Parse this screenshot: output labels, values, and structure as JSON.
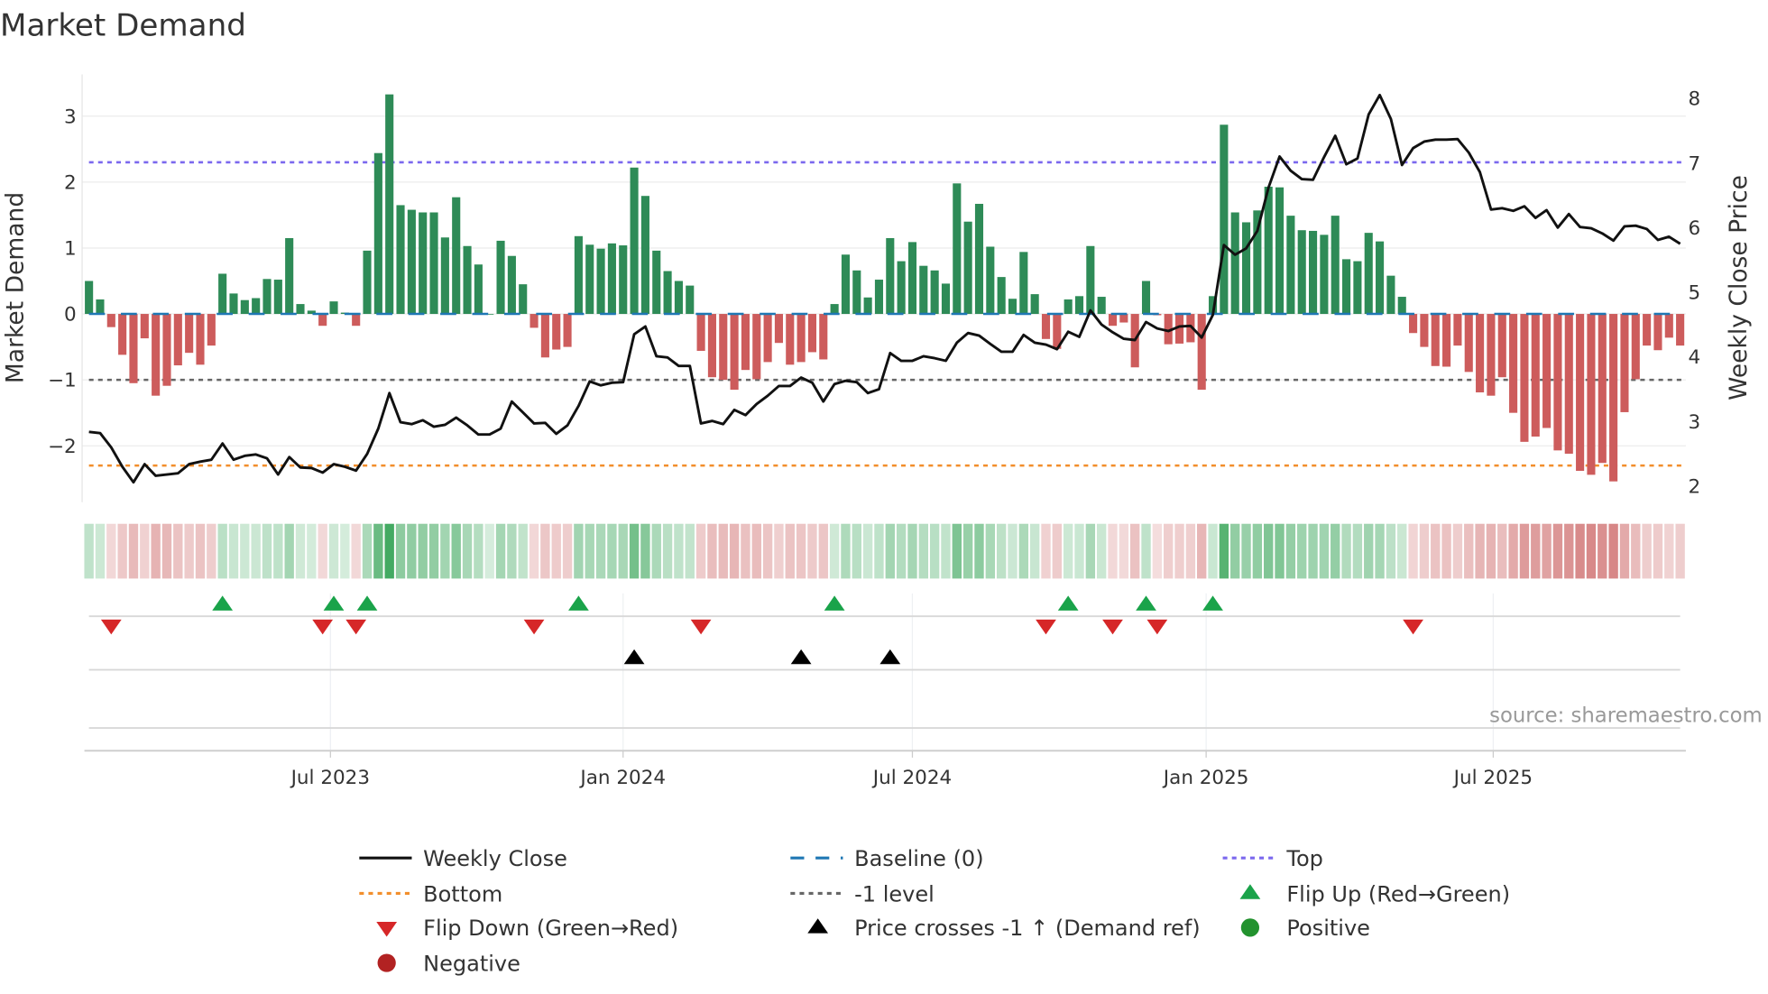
{
  "title": "Market Demand",
  "source": "source: sharemaestro.com",
  "colors": {
    "positive_bar": "#2e8b57",
    "negative_bar": "#cd5c5c",
    "price_line": "#111111",
    "baseline": "#1f77b4",
    "top": "#7b68ee",
    "bottom": "#f28e2b",
    "minus1": "#666666",
    "flip_up": "#1aa34a",
    "flip_down": "#d62728",
    "price_cross": "#000000",
    "positive_dot": "#22922e",
    "negative_dot": "#b22222"
  },
  "legend": [
    {
      "label": "Weekly Close",
      "kind": "line-solid",
      "color": "#111111"
    },
    {
      "label": "Baseline (0)",
      "kind": "line-dash",
      "color": "#1f77b4"
    },
    {
      "label": "Top",
      "kind": "line-dot",
      "color": "#7b68ee"
    },
    {
      "label": "Bottom",
      "kind": "line-dot",
      "color": "#f28e2b"
    },
    {
      "label": "-1 level",
      "kind": "line-dot",
      "color": "#666666"
    },
    {
      "label": "Flip Up (Red→Green)",
      "kind": "tri-up",
      "color": "#1aa34a"
    },
    {
      "label": "Flip Down (Green→Red)",
      "kind": "tri-down",
      "color": "#d62728"
    },
    {
      "label": "Price crosses -1 ↑ (Demand ref)",
      "kind": "tri-up",
      "color": "#000000"
    },
    {
      "label": "Positive",
      "kind": "dot",
      "color": "#22922e"
    },
    {
      "label": "Negative",
      "kind": "dot",
      "color": "#b22222"
    }
  ],
  "chart_data": {
    "type": "bar+line",
    "title": "Market Demand",
    "ylabel": "Market Demand",
    "y2label": "Weekly Close Price",
    "ylim": [
      -2.8,
      3.6
    ],
    "y2lim": [
      1.85,
      8.35
    ],
    "yticks": [
      3,
      2,
      1,
      0,
      -1,
      -2
    ],
    "ytick_labels": [
      "3",
      "2",
      "1",
      "0",
      "−1",
      "−2"
    ],
    "y2ticks": [
      8,
      7,
      6,
      5,
      4,
      3,
      2
    ],
    "y2tick_labels": [
      "8",
      "7",
      "6",
      "5",
      "4",
      "3",
      "2"
    ],
    "x_unit": "week index",
    "xticks": [
      {
        "label": "Jul 2023",
        "week": 22.7
      },
      {
        "label": "Jan 2024",
        "week": 49.0
      },
      {
        "label": "Jul 2024",
        "week": 75.0
      },
      {
        "label": "Jan 2025",
        "week": 101.4
      },
      {
        "label": "Jul 2025",
        "week": 127.2
      }
    ],
    "levels": {
      "baseline": 0,
      "top": 2.3,
      "bottom": -2.3,
      "minus1": -1
    },
    "demand": [
      0.5,
      0.22,
      -0.2,
      -0.62,
      -1.05,
      -0.37,
      -1.24,
      -1.09,
      -0.78,
      -0.59,
      -0.77,
      -0.48,
      0.61,
      0.31,
      0.21,
      0.24,
      0.53,
      0.52,
      1.15,
      0.15,
      0.05,
      -0.18,
      0.19,
      0.02,
      -0.18,
      0.96,
      2.44,
      3.33,
      1.65,
      1.58,
      1.54,
      1.54,
      1.16,
      1.77,
      1.03,
      0.75,
      0.0,
      1.11,
      0.88,
      0.45,
      -0.21,
      -0.66,
      -0.54,
      -0.5,
      1.18,
      1.05,
      0.99,
      1.07,
      1.04,
      2.22,
      1.79,
      0.96,
      0.65,
      0.5,
      0.43,
      -0.56,
      -0.96,
      -1.0,
      -1.15,
      -0.85,
      -0.99,
      -0.73,
      -0.44,
      -0.77,
      -0.73,
      -0.58,
      -0.69,
      0.15,
      0.9,
      0.66,
      0.25,
      0.52,
      1.15,
      0.8,
      1.09,
      0.73,
      0.66,
      0.46,
      1.98,
      1.4,
      1.67,
      1.02,
      0.56,
      0.23,
      0.94,
      0.3,
      -0.38,
      -0.53,
      0.22,
      0.27,
      1.03,
      0.26,
      -0.18,
      -0.13,
      -0.81,
      0.5,
      -0.02,
      -0.46,
      -0.45,
      -0.43,
      -1.15,
      0.27,
      2.87,
      1.54,
      1.39,
      1.57,
      1.93,
      1.92,
      1.49,
      1.27,
      1.26,
      1.2,
      1.49,
      0.83,
      0.8,
      1.23,
      1.1,
      0.58,
      0.26,
      -0.29,
      -0.5,
      -0.79,
      -0.8,
      -0.48,
      -0.88,
      -1.19,
      -1.24,
      -0.96,
      -1.5,
      -1.94,
      -1.86,
      -1.73,
      -2.07,
      -2.12,
      -2.38,
      -2.44,
      -2.26,
      -2.54,
      -1.49,
      -0.99,
      -0.48,
      -0.55,
      -0.36,
      -0.48
    ],
    "weekly_close": [
      2.84,
      2.82,
      2.6,
      2.3,
      2.06,
      2.34,
      2.16,
      2.18,
      2.2,
      2.34,
      2.38,
      2.41,
      2.66,
      2.41,
      2.47,
      2.49,
      2.43,
      2.18,
      2.45,
      2.29,
      2.28,
      2.21,
      2.34,
      2.3,
      2.24,
      2.5,
      2.89,
      3.44,
      2.99,
      2.96,
      3.02,
      2.92,
      2.95,
      3.06,
      2.94,
      2.8,
      2.8,
      2.89,
      3.31,
      3.14,
      2.97,
      2.98,
      2.81,
      2.94,
      3.24,
      3.62,
      3.56,
      3.6,
      3.61,
      4.35,
      4.47,
      4.01,
      3.99,
      3.86,
      3.86,
      2.97,
      3.01,
      2.96,
      3.18,
      3.1,
      3.27,
      3.4,
      3.55,
      3.55,
      3.68,
      3.6,
      3.31,
      3.58,
      3.63,
      3.61,
      3.44,
      3.5,
      4.06,
      3.94,
      3.94,
      4.01,
      3.98,
      3.94,
      4.22,
      4.37,
      4.33,
      4.2,
      4.08,
      4.08,
      4.34,
      4.22,
      4.19,
      4.12,
      4.39,
      4.31,
      4.72,
      4.5,
      4.38,
      4.28,
      4.26,
      4.54,
      4.44,
      4.4,
      4.47,
      4.48,
      4.3,
      4.65,
      5.73,
      5.58,
      5.68,
      5.95,
      6.62,
      7.1,
      6.88,
      6.75,
      6.74,
      7.09,
      7.42,
      6.98,
      7.07,
      7.75,
      8.05,
      7.68,
      6.97,
      7.23,
      7.33,
      7.36,
      7.36,
      7.37,
      7.16,
      6.86,
      6.28,
      6.3,
      6.26,
      6.33,
      6.15,
      6.27,
      6.0,
      6.21,
      6.01,
      5.99,
      5.91,
      5.8,
      6.02,
      6.03,
      5.98,
      5.81,
      5.86,
      5.75
    ],
    "flip_up_weeks": [
      13,
      23,
      26,
      45,
      68,
      89,
      96,
      102
    ],
    "flip_down_weeks": [
      3,
      22,
      25,
      41,
      56,
      87,
      93,
      97,
      120
    ],
    "price_cross_weeks": [
      50,
      65,
      73
    ],
    "legend_position": "bottom"
  }
}
